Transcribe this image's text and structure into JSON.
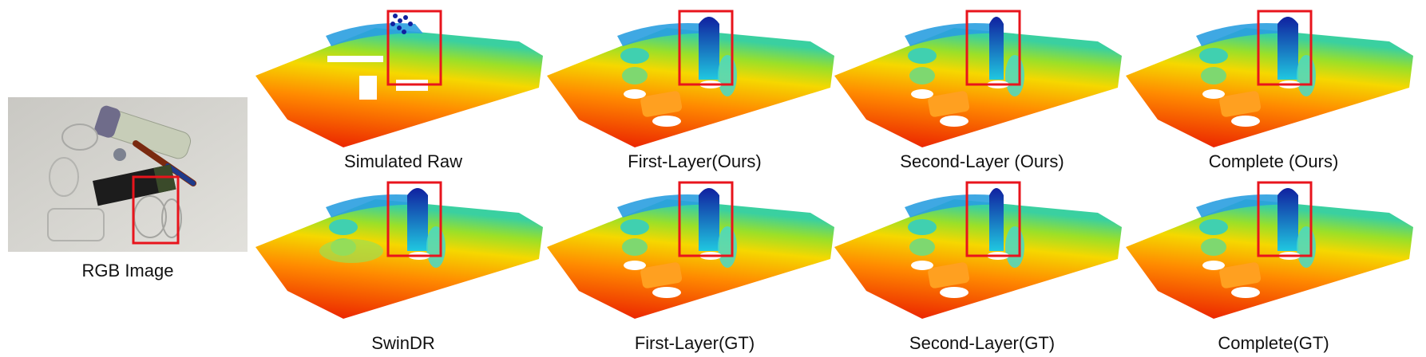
{
  "figure": {
    "rgb_caption": "RGB Image",
    "panels": [
      {
        "caption": "Simulated Raw",
        "variant": "raw",
        "highlight": "blue-dots"
      },
      {
        "caption": "First-Layer(Ours)",
        "variant": "layer",
        "highlight": "tube"
      },
      {
        "caption": "Second-Layer (Ours)",
        "variant": "layer",
        "highlight": "tube-thin"
      },
      {
        "caption": "Complete (Ours)",
        "variant": "complete",
        "highlight": "tube"
      },
      {
        "caption": "SwinDR",
        "variant": "smooth",
        "highlight": "tube-dense"
      },
      {
        "caption": "First-Layer(GT)",
        "variant": "layer",
        "highlight": "tube"
      },
      {
        "caption": "Second-Layer(GT)",
        "variant": "layer",
        "highlight": "tube-thin"
      },
      {
        "caption": "Complete(GT)",
        "variant": "complete",
        "highlight": "tube"
      }
    ],
    "colors": {
      "highlight_box": "#e8141c",
      "depth_near": "#e81400",
      "depth_mid": "#f5d800",
      "depth_far": "#20c8e0",
      "depth_top": "#1020a0"
    }
  }
}
